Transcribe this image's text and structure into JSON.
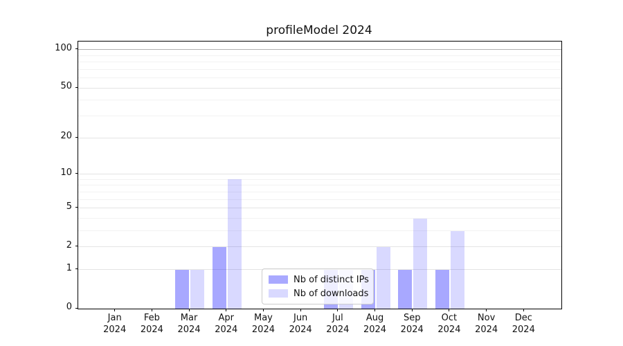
{
  "title": "profileModel 2024",
  "legend": {
    "items": [
      {
        "label": "Nb of distinct IPs"
      },
      {
        "label": "Nb of downloads"
      }
    ]
  },
  "chart_data": {
    "type": "bar",
    "title": "profileModel 2024",
    "categories": [
      "Jan",
      "Feb",
      "Mar",
      "Apr",
      "May",
      "Jun",
      "Jul",
      "Aug",
      "Sep",
      "Oct",
      "Nov",
      "Dec"
    ],
    "year_label": "2024",
    "series": [
      {
        "name": "Nb of distinct IPs",
        "color": "rgba(0,0,255,0.34)",
        "solid_color": "#a9a9ff",
        "values": [
          0,
          0,
          1,
          2,
          0,
          0,
          1,
          1,
          1,
          1,
          0,
          0
        ]
      },
      {
        "name": "Nb of downloads",
        "color": "rgba(0,0,255,0.15)",
        "solid_color": "#d9d9ff",
        "values": [
          0,
          0,
          1,
          9,
          0,
          0,
          1,
          2,
          4,
          3,
          0,
          0
        ]
      }
    ],
    "xlabel": "",
    "ylabel": "",
    "yticks": [
      100,
      50,
      20,
      10,
      5,
      2,
      1,
      0
    ],
    "minor_gridlines": [
      3,
      4,
      6,
      7,
      8,
      9,
      30,
      40,
      60,
      70,
      80,
      90
    ],
    "scale": "log1p",
    "ylim": [
      0,
      116
    ],
    "grid": true,
    "legend_position": "lower center",
    "grid_color_major": "#e4e4e4",
    "grid_color_top": "#b0b0b0",
    "grid_color_minor": "#f2f2f2"
  }
}
